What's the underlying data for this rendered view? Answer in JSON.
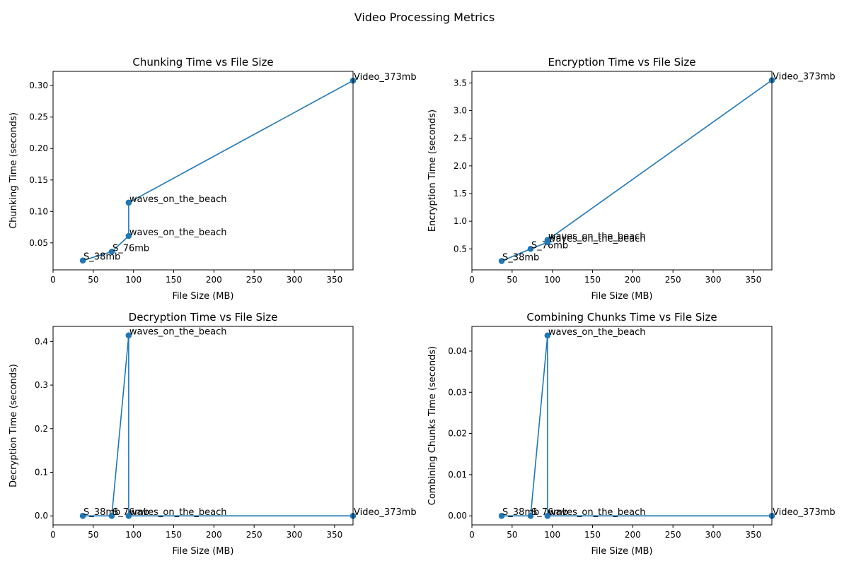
{
  "figure": {
    "suptitle": "Video Processing Metrics"
  },
  "colors": {
    "series": "#1f77b4",
    "axes": "#000000",
    "background": "#ffffff"
  },
  "chart_data": [
    {
      "type": "line",
      "title": "Chunking Time vs File Size",
      "xlabel": "File Size (MB)",
      "ylabel": "Chunking Time (seconds)",
      "xlim": [
        0,
        373
      ],
      "ylim": [
        0.0071,
        0.3227
      ],
      "xticks": [
        0,
        50,
        100,
        150,
        200,
        250,
        300,
        350
      ],
      "yticks": [
        0.05,
        0.1,
        0.15,
        0.2,
        0.25,
        0.3
      ],
      "ytick_labels": [
        "0.05",
        "0.10",
        "0.15",
        "0.20",
        "0.25",
        "0.30"
      ],
      "grid": false,
      "markers": true,
      "points": [
        {
          "label": "S_38mb",
          "x": 37,
          "y": 0.022
        },
        {
          "label": "S_76mb",
          "x": 73,
          "y": 0.036
        },
        {
          "label": "waves_on_the_beach",
          "x": 94,
          "y": 0.061
        },
        {
          "label": "waves_on_the_beach",
          "x": 94,
          "y": 0.114
        },
        {
          "label": "Video_373mb",
          "x": 373,
          "y": 0.308
        }
      ]
    },
    {
      "type": "line",
      "title": "Encryption Time vs File Size",
      "xlabel": "File Size (MB)",
      "ylabel": "Encryption Time (seconds)",
      "xlim": [
        0,
        373
      ],
      "ylim": [
        0.12,
        3.71
      ],
      "xticks": [
        0,
        50,
        100,
        150,
        200,
        250,
        300,
        350
      ],
      "yticks": [
        0.5,
        1.0,
        1.5,
        2.0,
        2.5,
        3.0,
        3.5
      ],
      "ytick_labels": [
        "0.5",
        "1.0",
        "1.5",
        "2.0",
        "2.5",
        "3.0",
        "3.5"
      ],
      "grid": false,
      "markers": true,
      "points": [
        {
          "label": "S_38mb",
          "x": 37,
          "y": 0.28
        },
        {
          "label": "S_76mb",
          "x": 73,
          "y": 0.5
        },
        {
          "label": "waves_on_the_beach",
          "x": 94,
          "y": 0.62
        },
        {
          "label": "waves_on_the_beach",
          "x": 94,
          "y": 0.66
        },
        {
          "label": "Video_373mb",
          "x": 373,
          "y": 3.55
        }
      ]
    },
    {
      "type": "line",
      "title": "Decryption Time vs File Size",
      "xlabel": "File Size (MB)",
      "ylabel": "Decryption Time (seconds)",
      "xlim": [
        0,
        373
      ],
      "ylim": [
        -0.0207,
        0.4346
      ],
      "xticks": [
        0,
        50,
        100,
        150,
        200,
        250,
        300,
        350
      ],
      "yticks": [
        0.0,
        0.1,
        0.2,
        0.3,
        0.4
      ],
      "ytick_labels": [
        "0.0",
        "0.1",
        "0.2",
        "0.3",
        "0.4"
      ],
      "grid": false,
      "markers": true,
      "points": [
        {
          "label": "S_38mb",
          "x": 37,
          "y": 0.0
        },
        {
          "label": "S_76mb",
          "x": 73,
          "y": 0.0
        },
        {
          "label": "waves_on_the_beach",
          "x": 94,
          "y": 0.414
        },
        {
          "label": "waves_on_the_beach",
          "x": 94,
          "y": 0.0
        },
        {
          "label": "Video_373mb",
          "x": 373,
          "y": 0.0
        }
      ]
    },
    {
      "type": "line",
      "title": "Combining Chunks Time vs File Size",
      "xlabel": "File Size (MB)",
      "ylabel": "Combining Chunks Time (seconds)",
      "xlim": [
        0,
        373
      ],
      "ylim": [
        -0.0022,
        0.046
      ],
      "xticks": [
        0,
        50,
        100,
        150,
        200,
        250,
        300,
        350
      ],
      "yticks": [
        0.0,
        0.01,
        0.02,
        0.03,
        0.04
      ],
      "ytick_labels": [
        "0.00",
        "0.01",
        "0.02",
        "0.03",
        "0.04"
      ],
      "grid": false,
      "markers": true,
      "points": [
        {
          "label": "S_38mb",
          "x": 37,
          "y": 0.0
        },
        {
          "label": "S_76mb",
          "x": 73,
          "y": 0.0
        },
        {
          "label": "waves_on_the_beach",
          "x": 94,
          "y": 0.0438
        },
        {
          "label": "waves_on_the_beach",
          "x": 94,
          "y": 0.0
        },
        {
          "label": "Video_373mb",
          "x": 373,
          "y": 0.0
        }
      ]
    }
  ]
}
